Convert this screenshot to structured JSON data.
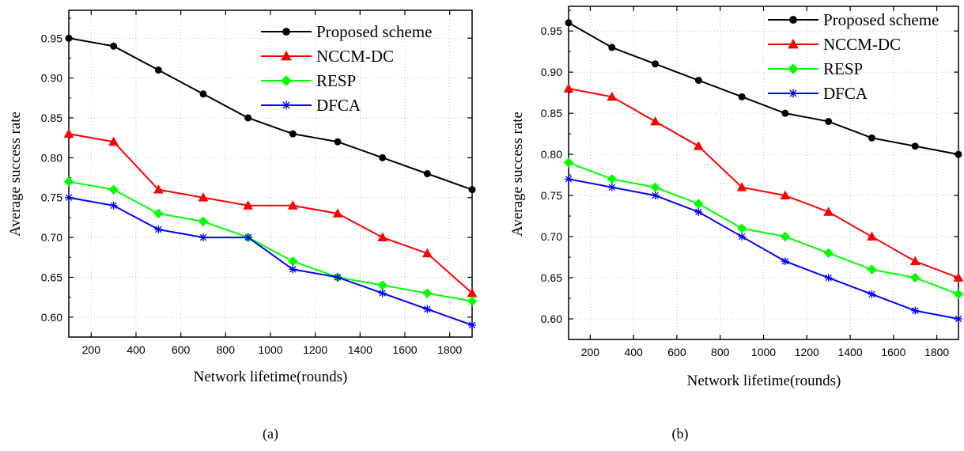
{
  "chart_data": [
    {
      "type": "line",
      "panel_label": "(a)",
      "xlabel": "Network lifetime(rounds)",
      "ylabel": "Average success rate",
      "xlim": [
        100,
        1900
      ],
      "ylim": [
        0.575,
        0.985
      ],
      "xticks": [
        200,
        400,
        600,
        800,
        1000,
        1200,
        1400,
        1600,
        1800
      ],
      "xtick_labels": [
        "200",
        "400",
        "600",
        "800",
        "1000",
        "1200",
        "1400",
        "1600",
        "1800"
      ],
      "yticks": [
        0.6,
        0.65,
        0.7,
        0.75,
        0.8,
        0.85,
        0.9,
        0.95
      ],
      "ytick_labels": [
        "0.60",
        "0.65",
        "0.70",
        "0.75",
        "0.80",
        "0.85",
        "0.90",
        "0.95"
      ],
      "grid": false,
      "legend_position": "top-right",
      "x": [
        100,
        300,
        500,
        700,
        900,
        1100,
        1300,
        1500,
        1700,
        1900
      ],
      "series": [
        {
          "name": "Proposed scheme",
          "color": "#000000",
          "marker": "circle",
          "values": [
            0.95,
            0.94,
            0.91,
            0.88,
            0.85,
            0.83,
            0.82,
            0.8,
            0.78,
            0.76
          ]
        },
        {
          "name": "NCCM-DC",
          "color": "#ff0000",
          "marker": "triangle",
          "values": [
            0.83,
            0.82,
            0.76,
            0.75,
            0.74,
            0.74,
            0.73,
            0.7,
            0.68,
            0.63
          ]
        },
        {
          "name": "RESP",
          "color": "#00ff00",
          "marker": "diamond",
          "values": [
            0.77,
            0.76,
            0.73,
            0.72,
            0.7,
            0.67,
            0.65,
            0.64,
            0.63,
            0.62
          ]
        },
        {
          "name": "DFCA",
          "color": "#0000ff",
          "marker": "star",
          "values": [
            0.75,
            0.74,
            0.71,
            0.7,
            0.7,
            0.66,
            0.65,
            0.63,
            0.61,
            0.59
          ]
        }
      ]
    },
    {
      "type": "line",
      "panel_label": "(b)",
      "xlabel": "Network lifetime(rounds)",
      "ylabel": "Average success rate",
      "xlim": [
        100,
        1900
      ],
      "ylim": [
        0.575,
        0.98
      ],
      "xticks": [
        200,
        400,
        600,
        800,
        1000,
        1200,
        1400,
        1600,
        1800
      ],
      "xtick_labels": [
        "200",
        "400",
        "600",
        "800",
        "1000",
        "1200",
        "1400",
        "1600",
        "1800"
      ],
      "yticks": [
        0.6,
        0.65,
        0.7,
        0.75,
        0.8,
        0.85,
        0.9,
        0.95
      ],
      "ytick_labels": [
        "0.60",
        "0.65",
        "0.70",
        "0.75",
        "0.80",
        "0.85",
        "0.90",
        "0.95"
      ],
      "grid": false,
      "legend_position": "top-right",
      "x": [
        100,
        300,
        500,
        700,
        900,
        1100,
        1300,
        1500,
        1700,
        1900
      ],
      "series": [
        {
          "name": "Proposed scheme",
          "color": "#000000",
          "marker": "circle",
          "values": [
            0.96,
            0.93,
            0.91,
            0.89,
            0.87,
            0.85,
            0.84,
            0.82,
            0.81,
            0.8
          ]
        },
        {
          "name": "NCCM-DC",
          "color": "#ff0000",
          "marker": "triangle",
          "values": [
            0.88,
            0.87,
            0.84,
            0.81,
            0.76,
            0.75,
            0.73,
            0.7,
            0.67,
            0.65
          ]
        },
        {
          "name": "RESP",
          "color": "#00ff00",
          "marker": "diamond",
          "values": [
            0.79,
            0.77,
            0.76,
            0.74,
            0.71,
            0.7,
            0.68,
            0.66,
            0.65,
            0.63
          ]
        },
        {
          "name": "DFCA",
          "color": "#0000ff",
          "marker": "star",
          "values": [
            0.77,
            0.76,
            0.75,
            0.73,
            0.7,
            0.67,
            0.65,
            0.63,
            0.61,
            0.6
          ]
        }
      ]
    }
  ]
}
